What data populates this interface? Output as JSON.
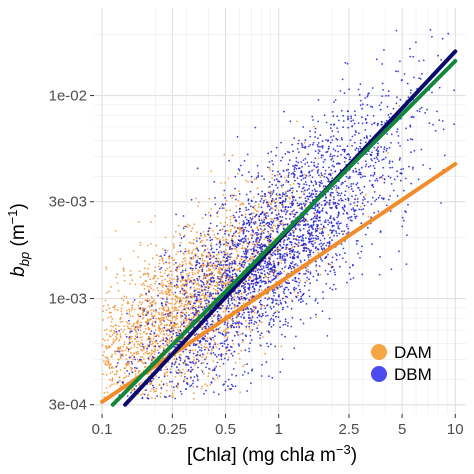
{
  "chart_data": {
    "type": "scatter",
    "xscale": "log10",
    "yscale": "log10",
    "xlim": [
      0.09,
      11.5
    ],
    "ylim": [
      0.00027,
      0.027
    ],
    "xticks": [
      {
        "value": 0.1,
        "label": "0.1"
      },
      {
        "value": 0.25,
        "label": "0.25"
      },
      {
        "value": 0.5,
        "label": "0.5"
      },
      {
        "value": 1,
        "label": "1"
      },
      {
        "value": 2.5,
        "label": "2.5"
      },
      {
        "value": 5,
        "label": "5"
      },
      {
        "value": 10,
        "label": "10"
      }
    ],
    "yticks": [
      {
        "value": 0.0003,
        "label": "3e-04"
      },
      {
        "value": 0.001,
        "label": "1e-03"
      },
      {
        "value": 0.003,
        "label": "3e-03"
      },
      {
        "value": 0.01,
        "label": "1e-02"
      }
    ],
    "xlabel": {
      "prefix": "[Chl",
      "italic": "a",
      "suffix": "] (mg chl",
      "italic2": "a",
      "units": " m",
      "sup": "−3",
      "close": ")"
    },
    "ylabel": {
      "main": "b",
      "sub": "bp",
      "units": " (m",
      "sup": "−1",
      "close": ")"
    },
    "grid": true,
    "legend": {
      "position": "bottom-right",
      "entries": [
        {
          "name": "DAM",
          "color": "#F5A446"
        },
        {
          "name": "DBM",
          "color": "#4B4BF0"
        }
      ]
    },
    "series": [
      {
        "name": "DAM",
        "color": "#F0922E",
        "point_cloud": {
          "x_range": [
            0.1,
            10
          ],
          "y_range": [
            0.00032,
            0.02
          ],
          "center": [
            0.3,
            0.0009
          ],
          "n": 2600
        }
      },
      {
        "name": "DBM",
        "color": "#1E1ED2",
        "point_cloud": {
          "x_range": [
            0.12,
            10
          ],
          "y_range": [
            0.00032,
            0.023
          ],
          "center": [
            0.9,
            0.0017
          ],
          "n": 3200
        }
      }
    ],
    "fit_lines": [
      {
        "name": "DAM fit",
        "color": "#F08C2A",
        "points": [
          [
            0.1,
            0.00031
          ],
          [
            10,
            0.0046
          ]
        ]
      },
      {
        "name": "DBM fit",
        "color": "#0B0B6E",
        "points": [
          [
            0.135,
            0.0003
          ],
          [
            10,
            0.0165
          ]
        ]
      },
      {
        "name": "combined fit",
        "color": "#12873C",
        "points": [
          [
            0.115,
            0.0003
          ],
          [
            10,
            0.0148
          ]
        ]
      }
    ]
  }
}
